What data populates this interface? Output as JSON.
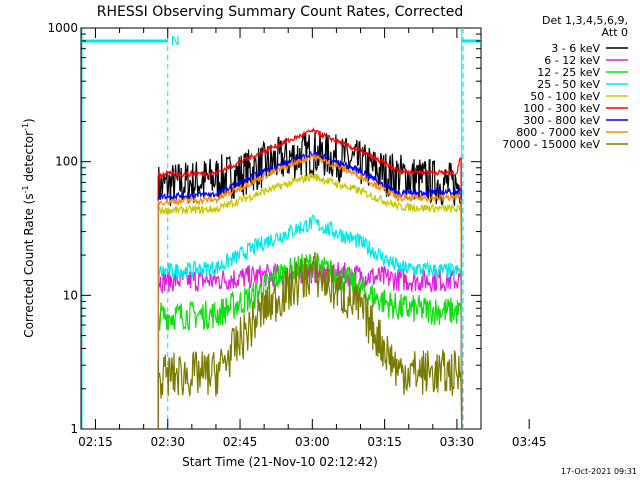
{
  "chart_data": {
    "type": "line",
    "title": "RHESSI Observing Summary Count Rates, Corrected",
    "xlabel": "Start Time (21-Nov-10 02:12:42)",
    "ylabel_main": "Corrected Count Rate (s",
    "ylabel_sup1": "-1",
    "ylabel_mid": " detector",
    "ylabel_sup2": "-1",
    "ylabel_end": ")",
    "yscale": "log",
    "ylim": [
      1,
      1000
    ],
    "xlim_minutes": [
      12,
      95
    ],
    "x_ticks": [
      {
        "minute": 15,
        "label": "02:15"
      },
      {
        "minute": 30,
        "label": "02:30"
      },
      {
        "minute": 45,
        "label": "02:45"
      },
      {
        "minute": 60,
        "label": "03:00"
      },
      {
        "minute": 75,
        "label": "03:15"
      },
      {
        "minute": 90,
        "label": "03:30"
      },
      {
        "minute": 105,
        "label": "03:45"
      }
    ],
    "y_ticks": [
      {
        "value": 1,
        "label": "1"
      },
      {
        "value": 10,
        "label": "10"
      },
      {
        "value": 100,
        "label": "100"
      },
      {
        "value": 1000,
        "label": "1000"
      }
    ],
    "legend_header": [
      "Det 1,3,4,5,6,9,",
      "Att 0"
    ],
    "legend_position": "right",
    "night_bar": {
      "label": "N",
      "value": 800,
      "color": "#00e5ee",
      "left_end_minute": 30,
      "right_start_minute": 91
    },
    "series": [
      {
        "name": "3 - 6 keV",
        "color": "#000000",
        "keypoints": [
          [
            28,
            65
          ],
          [
            35,
            70
          ],
          [
            45,
            80
          ],
          [
            52,
            100
          ],
          [
            60,
            117
          ],
          [
            68,
            102
          ],
          [
            75,
            82
          ],
          [
            90,
            66
          ],
          [
            91,
            70
          ]
        ]
      },
      {
        "name": "6 - 12 keV",
        "color": "#e020e0",
        "keypoints": [
          [
            28,
            13
          ],
          [
            40,
            13
          ],
          [
            50,
            14
          ],
          [
            60,
            15
          ],
          [
            70,
            14
          ],
          [
            80,
            13
          ],
          [
            91,
            13
          ]
        ]
      },
      {
        "name": "12 - 25 keV",
        "color": "#10e010",
        "keypoints": [
          [
            28,
            7
          ],
          [
            40,
            7.2
          ],
          [
            48,
            10
          ],
          [
            53,
            14
          ],
          [
            60,
            17
          ],
          [
            67,
            13
          ],
          [
            72,
            10
          ],
          [
            78,
            8
          ],
          [
            91,
            7.5
          ]
        ]
      },
      {
        "name": "25 - 50 keV",
        "color": "#00e8e8",
        "keypoints": [
          [
            28,
            15
          ],
          [
            40,
            16
          ],
          [
            50,
            25
          ],
          [
            60,
            35
          ],
          [
            70,
            25
          ],
          [
            78,
            16
          ],
          [
            91,
            15
          ]
        ]
      },
      {
        "name": "50 - 100 keV",
        "color": "#c8c800",
        "keypoints": [
          [
            28,
            43
          ],
          [
            40,
            44
          ],
          [
            50,
            60
          ],
          [
            60,
            78
          ],
          [
            70,
            60
          ],
          [
            78,
            46
          ],
          [
            91,
            44
          ]
        ]
      },
      {
        "name": "100 - 300 keV",
        "color": "#ff0000",
        "keypoints": [
          [
            28,
            80
          ],
          [
            40,
            82
          ],
          [
            50,
            120
          ],
          [
            60,
            170
          ],
          [
            70,
            120
          ],
          [
            78,
            85
          ],
          [
            90,
            82
          ],
          [
            91,
            118
          ]
        ]
      },
      {
        "name": "300 - 800 keV",
        "color": "#0000ff",
        "keypoints": [
          [
            28,
            55
          ],
          [
            40,
            57
          ],
          [
            50,
            85
          ],
          [
            60,
            115
          ],
          [
            70,
            85
          ],
          [
            78,
            58
          ],
          [
            91,
            60
          ]
        ]
      },
      {
        "name": "800 - 7000 keV",
        "color": "#ff8800",
        "keypoints": [
          [
            28,
            50
          ],
          [
            40,
            52
          ],
          [
            50,
            78
          ],
          [
            60,
            110
          ],
          [
            70,
            78
          ],
          [
            78,
            53
          ],
          [
            91,
            54
          ]
        ]
      },
      {
        "name": "7000 - 15000 keV",
        "color": "#7a7a00",
        "keypoints": [
          [
            28,
            2.5
          ],
          [
            40,
            2.6
          ],
          [
            50,
            8
          ],
          [
            60,
            15
          ],
          [
            70,
            8
          ],
          [
            78,
            2.7
          ],
          [
            91,
            2.6
          ]
        ]
      }
    ],
    "timestamp": "17-Oct-2021 09:31"
  }
}
